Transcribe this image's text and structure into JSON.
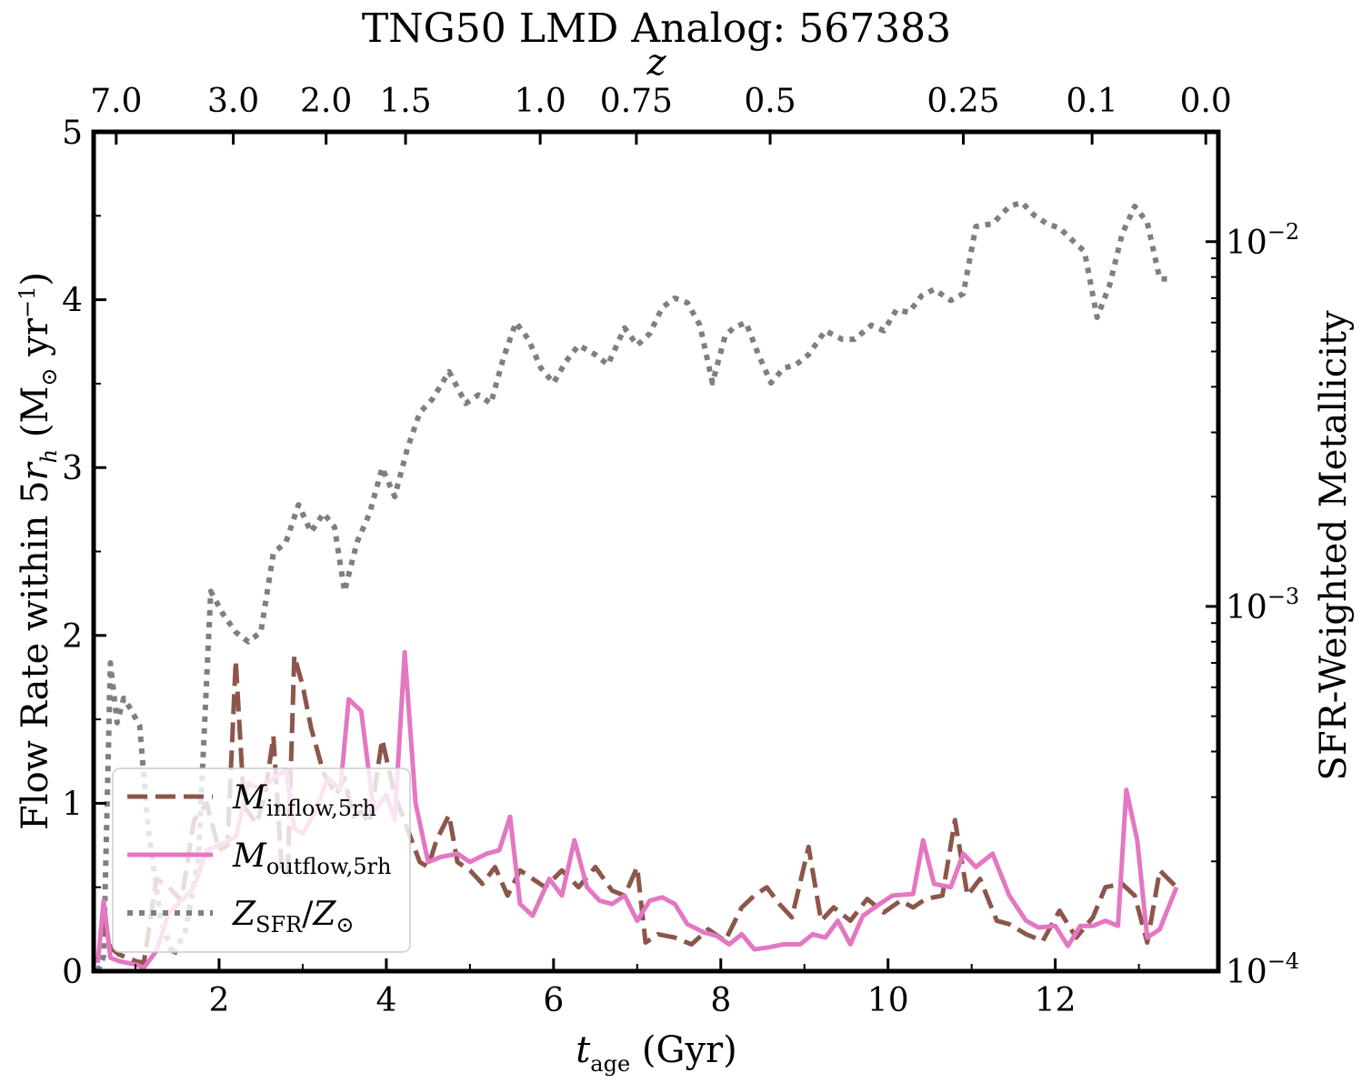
{
  "chart_data": {
    "type": "line",
    "title": "TNG50 LMD Analog: 567383",
    "xlabel": {
      "main": "t",
      "sub": "age",
      "unit": " (Gyr)"
    },
    "ylabel": {
      "main": "Flow Rate within 5",
      "var": "r",
      "sub": "h",
      "unit_open": " (M",
      "sun": "⊙",
      "unit_mid": " yr",
      "sup": "−1",
      "unit_close": ")"
    },
    "y2label": "SFR-Weighted Metallicity",
    "top_axis_label": "z",
    "xlim": [
      0.5,
      13.95
    ],
    "ylim": [
      0,
      5
    ],
    "y2lim": [
      0.0001,
      0.02
    ],
    "y2scale": "log",
    "x_ticks": [
      2,
      4,
      6,
      8,
      10,
      12
    ],
    "x_tick_labels": [
      "2",
      "4",
      "6",
      "8",
      "10",
      "12"
    ],
    "y_ticks": [
      0,
      1,
      2,
      3,
      4,
      5
    ],
    "y_tick_labels": [
      "0",
      "1",
      "2",
      "3",
      "4",
      "5"
    ],
    "y2_ticks": [
      0.0001,
      0.001,
      0.01
    ],
    "y2_tick_labels": [
      {
        "base": "10",
        "exp": "−4"
      },
      {
        "base": "10",
        "exp": "−3"
      },
      {
        "base": "10",
        "exp": "−2"
      }
    ],
    "top_ticks": [
      {
        "label": "7.0",
        "t": 0.77
      },
      {
        "label": "3.0",
        "t": 2.17
      },
      {
        "label": "2.0",
        "t": 3.28
      },
      {
        "label": "1.5",
        "t": 4.23
      },
      {
        "label": "1.0",
        "t": 5.84
      },
      {
        "label": "0.75",
        "t": 6.99
      },
      {
        "label": "0.5",
        "t": 8.59
      },
      {
        "label": "0.25",
        "t": 10.9
      },
      {
        "label": "0.1",
        "t": 12.44
      },
      {
        "label": "0.0",
        "t": 13.8
      }
    ],
    "legend": {
      "position": "lower-left",
      "entries": [
        {
          "series": "inflow",
          "label_main": "M",
          "label_sub": "inflow,5rh"
        },
        {
          "series": "outflow",
          "label_main": "M",
          "label_sub": "outflow,5rh"
        },
        {
          "series": "metallicity",
          "label_main": "Z",
          "label_sub": "SFR",
          "label_mid": "/",
          "label_main2": "Z",
          "label_sub2": "⊙"
        }
      ]
    },
    "series": [
      {
        "name": "M_inflow,5rh",
        "key": "inflow",
        "axis": "left",
        "color": "#8c564b",
        "style": "dashed",
        "x": [
          0.6,
          0.7,
          0.8,
          0.9,
          1.0,
          1.1,
          1.25,
          1.4,
          1.55,
          1.7,
          1.85,
          2.0,
          2.1,
          2.2,
          2.3,
          2.45,
          2.55,
          2.65,
          2.75,
          2.82,
          2.9,
          3.0,
          3.1,
          3.25,
          3.4,
          3.5,
          3.6,
          3.7,
          3.8,
          3.95,
          4.1,
          4.25,
          4.4,
          4.5,
          4.6,
          4.75,
          4.85,
          5.0,
          5.15,
          5.3,
          5.45,
          5.6,
          5.75,
          5.9,
          6.1,
          6.3,
          6.5,
          6.7,
          6.85,
          7.0,
          7.1,
          7.25,
          7.45,
          7.65,
          7.85,
          8.05,
          8.25,
          8.4,
          8.55,
          8.7,
          8.85,
          9.05,
          9.2,
          9.35,
          9.55,
          9.75,
          9.95,
          10.15,
          10.3,
          10.45,
          10.65,
          10.8,
          10.95,
          11.1,
          11.3,
          11.45,
          11.65,
          11.85,
          12.05,
          12.25,
          12.45,
          12.6,
          12.8,
          12.95,
          13.1,
          13.25,
          13.45
        ],
        "y": [
          0.32,
          0.14,
          0.1,
          0.08,
          0.06,
          0.05,
          0.55,
          0.5,
          0.42,
          0.9,
          1.0,
          0.72,
          0.75,
          1.85,
          0.98,
          0.88,
          1.05,
          1.4,
          0.6,
          0.58,
          1.88,
          1.7,
          1.45,
          1.18,
          1.05,
          1.15,
          0.92,
          0.95,
          0.88,
          1.38,
          1.05,
          0.85,
          0.65,
          0.62,
          0.78,
          0.93,
          0.65,
          0.6,
          0.52,
          0.62,
          0.45,
          0.6,
          0.55,
          0.5,
          0.6,
          0.5,
          0.62,
          0.48,
          0.45,
          0.62,
          0.17,
          0.22,
          0.2,
          0.16,
          0.25,
          0.18,
          0.38,
          0.45,
          0.5,
          0.4,
          0.32,
          0.74,
          0.3,
          0.38,
          0.3,
          0.43,
          0.35,
          0.42,
          0.38,
          0.43,
          0.45,
          0.9,
          0.45,
          0.55,
          0.3,
          0.28,
          0.22,
          0.18,
          0.36,
          0.2,
          0.32,
          0.5,
          0.52,
          0.45,
          0.17,
          0.6,
          0.5
        ]
      },
      {
        "name": "M_outflow,5rh",
        "key": "outflow",
        "axis": "left",
        "color": "#e377c2",
        "style": "solid",
        "x": [
          0.55,
          0.62,
          0.7,
          0.8,
          0.9,
          1.0,
          1.1,
          1.25,
          1.4,
          1.55,
          1.7,
          1.85,
          2.0,
          2.2,
          2.35,
          2.5,
          2.65,
          2.8,
          2.9,
          3.0,
          3.15,
          3.3,
          3.45,
          3.55,
          3.7,
          3.85,
          4.0,
          4.1,
          4.22,
          4.35,
          4.5,
          4.65,
          4.85,
          5.0,
          5.2,
          5.35,
          5.48,
          5.6,
          5.75,
          5.95,
          6.1,
          6.25,
          6.4,
          6.55,
          6.7,
          6.85,
          7.0,
          7.15,
          7.3,
          7.45,
          7.6,
          7.8,
          7.95,
          8.1,
          8.25,
          8.4,
          8.55,
          8.75,
          8.95,
          9.1,
          9.25,
          9.4,
          9.55,
          9.7,
          9.9,
          10.05,
          10.3,
          10.42,
          10.55,
          10.75,
          10.9,
          11.05,
          11.25,
          11.45,
          11.65,
          11.8,
          12.0,
          12.15,
          12.3,
          12.45,
          12.6,
          12.75,
          12.85,
          12.98,
          13.1,
          13.25,
          13.45
        ],
        "y": [
          0.05,
          0.42,
          0.08,
          0.06,
          0.05,
          0.04,
          0.02,
          0.12,
          0.35,
          0.42,
          0.5,
          0.72,
          0.75,
          0.8,
          1.12,
          1.08,
          1.15,
          1.2,
          0.85,
          0.82,
          0.95,
          1.15,
          1.08,
          1.62,
          1.55,
          0.95,
          1.05,
          0.9,
          1.9,
          1.0,
          0.65,
          0.68,
          0.7,
          0.65,
          0.7,
          0.72,
          0.92,
          0.4,
          0.33,
          0.55,
          0.45,
          0.78,
          0.5,
          0.42,
          0.4,
          0.45,
          0.3,
          0.42,
          0.44,
          0.4,
          0.28,
          0.23,
          0.21,
          0.16,
          0.22,
          0.13,
          0.14,
          0.16,
          0.16,
          0.22,
          0.2,
          0.3,
          0.16,
          0.33,
          0.4,
          0.45,
          0.46,
          0.78,
          0.52,
          0.5,
          0.7,
          0.62,
          0.7,
          0.45,
          0.3,
          0.26,
          0.27,
          0.15,
          0.27,
          0.27,
          0.3,
          0.27,
          1.08,
          0.78,
          0.2,
          0.25,
          0.5
        ]
      },
      {
        "name": "Z_SFR/Z_sun",
        "key": "metallicity",
        "axis": "right",
        "color": "#7f7f7f",
        "style": "dotted",
        "x": [
          0.55,
          0.62,
          0.7,
          0.78,
          0.86,
          0.95,
          1.05,
          1.15,
          1.3,
          1.45,
          1.6,
          1.75,
          1.9,
          2.05,
          2.2,
          2.35,
          2.5,
          2.65,
          2.8,
          2.95,
          3.1,
          3.25,
          3.38,
          3.5,
          3.65,
          3.8,
          3.95,
          4.1,
          4.25,
          4.4,
          4.55,
          4.75,
          4.95,
          5.1,
          5.25,
          5.4,
          5.55,
          5.7,
          5.85,
          6.0,
          6.15,
          6.3,
          6.5,
          6.65,
          6.85,
          7.0,
          7.15,
          7.3,
          7.45,
          7.6,
          7.75,
          7.9,
          8.05,
          8.15,
          8.3,
          8.45,
          8.6,
          8.75,
          8.9,
          9.05,
          9.25,
          9.45,
          9.6,
          9.8,
          9.95,
          10.1,
          10.25,
          10.4,
          10.55,
          10.75,
          10.9,
          11.05,
          11.25,
          11.45,
          11.6,
          11.75,
          11.9,
          12.05,
          12.2,
          12.35,
          12.5,
          12.65,
          12.8,
          12.95,
          13.1,
          13.25,
          13.4
        ],
        "y": [
          0.0001,
          0.00011,
          0.0007,
          0.00048,
          0.00056,
          0.00052,
          0.00047,
          0.00025,
          0.00014,
          0.00011,
          0.00013,
          0.0002,
          0.0011,
          0.00095,
          0.00085,
          0.0008,
          0.00085,
          0.0014,
          0.0015,
          0.0019,
          0.0016,
          0.0018,
          0.00165,
          0.0011,
          0.0015,
          0.0018,
          0.0024,
          0.002,
          0.0027,
          0.0034,
          0.0037,
          0.0044,
          0.0036,
          0.0038,
          0.0036,
          0.0048,
          0.006,
          0.0054,
          0.0045,
          0.0041,
          0.0047,
          0.0052,
          0.0049,
          0.0046,
          0.0058,
          0.0052,
          0.0056,
          0.0066,
          0.007,
          0.0068,
          0.0059,
          0.0041,
          0.0055,
          0.0058,
          0.006,
          0.0049,
          0.0041,
          0.0045,
          0.0046,
          0.0049,
          0.0057,
          0.0054,
          0.0054,
          0.0059,
          0.0057,
          0.0065,
          0.0064,
          0.0071,
          0.0074,
          0.0069,
          0.0072,
          0.011,
          0.0112,
          0.0125,
          0.0128,
          0.0118,
          0.0112,
          0.0109,
          0.0101,
          0.0094,
          0.0062,
          0.0076,
          0.0105,
          0.0125,
          0.0113,
          0.0079,
          0.0079
        ]
      }
    ]
  }
}
